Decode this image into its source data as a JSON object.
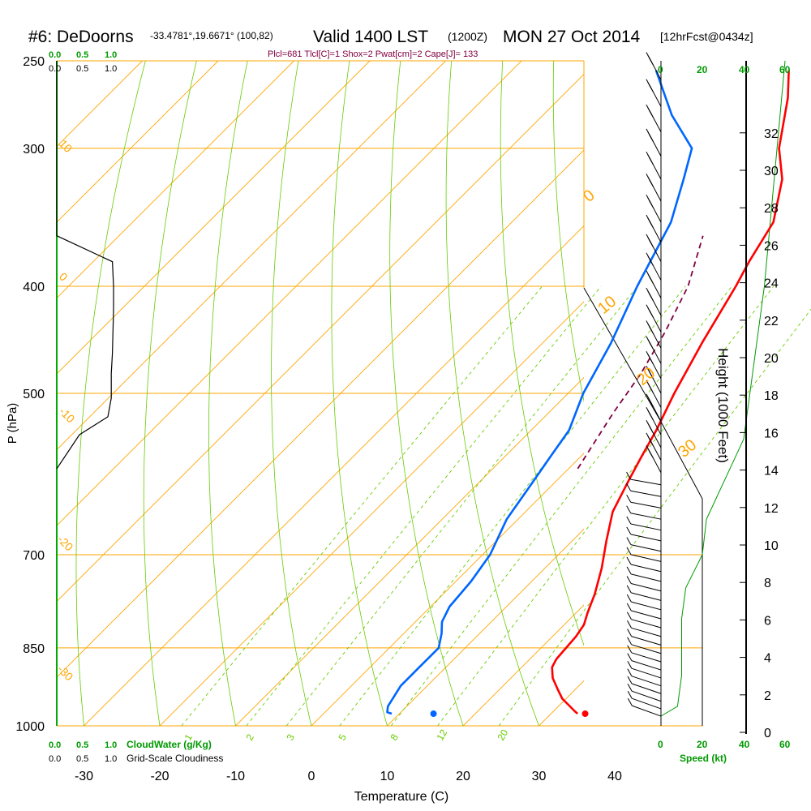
{
  "header": {
    "station": "#6: DeDoorns",
    "coords": "-33.4781°,19.6671° (100,82)",
    "valid": "Valid 1400 LST",
    "zulu": "(1200Z)",
    "date": "MON 27 Oct 2014",
    "forecast": "[12hrFcst@0434z]",
    "indices": "Plcl=681 Tlcl[C]=1 Shox=2 Pwat[cm]=2 Cape[J]= 133"
  },
  "colors": {
    "isobar": "#ffa500",
    "mixing": "#66cc00",
    "temperature": "#ff0000",
    "dewpoint": "#0066ff",
    "parcel": "#800040",
    "cloudwater": "#009900",
    "cloudiness": "#000000",
    "height": "#000000"
  },
  "chart_data": {
    "type": "line",
    "xlabel": "Temperature (C)",
    "ylabel": "P (hPa)",
    "right_label": "Height (1000 Feet)",
    "xlim": [
      -35,
      45
    ],
    "ylim": [
      1000,
      250
    ],
    "x_ticks": [
      "-30",
      "-20",
      "-10",
      "0",
      "10",
      "20",
      "30",
      "40"
    ],
    "y_ticks": [
      "250",
      "300",
      "400",
      "500",
      "700",
      "850",
      "1000"
    ],
    "height_ticks": [
      "0",
      "2",
      "4",
      "6",
      "8",
      "10",
      "12",
      "14",
      "16",
      "18",
      "20",
      "22",
      "24",
      "26",
      "28",
      "30",
      "32"
    ],
    "cloud_axis_top": {
      "water": [
        "0.0",
        "0.5",
        "1.0"
      ],
      "cloudiness": [
        "0.0",
        "0.5",
        "1.0"
      ]
    },
    "cloud_axis_bottom": {
      "water": [
        "0.0",
        "0.5",
        "1.0"
      ],
      "water_label": "CloudWater (g/Kg)",
      "cloudiness": [
        "0.0",
        "0.5",
        "1.0"
      ],
      "cloudiness_label": "Grid-Scale Cloudiness"
    },
    "speed_axis_top": [
      "0",
      "20",
      "40",
      "60"
    ],
    "speed_axis_bottom": [
      "0",
      "20",
      "40",
      "60"
    ],
    "speed_label": "Speed (kt)",
    "isotherm_labels": [
      "10",
      "0",
      "-10",
      "-20",
      "-30"
    ],
    "theta_labels": [
      "0",
      "10",
      "20",
      "30"
    ],
    "mixing_ratio_labels": [
      "1",
      "2",
      "3",
      "5",
      "8",
      "12",
      "20"
    ],
    "series": [
      {
        "key": "temperature",
        "points": [
          [
            33.5,
            975
          ],
          [
            32.8,
            970
          ],
          [
            31.5,
            960
          ],
          [
            29.5,
            945
          ],
          [
            27.5,
            925
          ],
          [
            25.5,
            905
          ],
          [
            24.0,
            885
          ],
          [
            23.5,
            870
          ],
          [
            23.3,
            850
          ],
          [
            23.1,
            830
          ],
          [
            22.6,
            810
          ],
          [
            21.5,
            790
          ],
          [
            20.0,
            760
          ],
          [
            17.5,
            720
          ],
          [
            14.5,
            680
          ],
          [
            11.5,
            640
          ],
          [
            9.5,
            600
          ],
          [
            8.0,
            570
          ],
          [
            6.5,
            540
          ],
          [
            4.0,
            500
          ],
          [
            1.0,
            450
          ],
          [
            -2.0,
            400
          ],
          [
            -3.5,
            380
          ],
          [
            -5.5,
            350
          ],
          [
            -10.0,
            320
          ],
          [
            -14.5,
            300
          ],
          [
            -20.0,
            270
          ],
          [
            -23.5,
            255
          ]
        ]
      },
      {
        "key": "dewpoint",
        "points": [
          [
            9.0,
            975
          ],
          [
            8.2,
            972
          ],
          [
            7.5,
            960
          ],
          [
            6.5,
            920
          ],
          [
            6.5,
            885
          ],
          [
            6.5,
            850
          ],
          [
            5.0,
            825
          ],
          [
            3.5,
            805
          ],
          [
            2.5,
            780
          ],
          [
            2.0,
            740
          ],
          [
            1.0,
            700
          ],
          [
            -1.5,
            650
          ],
          [
            -3.0,
            600
          ],
          [
            -4.0,
            570
          ],
          [
            -5.0,
            540
          ],
          [
            -8.0,
            500
          ],
          [
            -11.0,
            450
          ],
          [
            -15.0,
            400
          ],
          [
            -19.0,
            350
          ],
          [
            -23.0,
            320
          ],
          [
            -26.0,
            300
          ],
          [
            -33.0,
            280
          ],
          [
            -41.0,
            255
          ]
        ]
      },
      {
        "key": "parcel",
        "dash": true,
        "points": [
          [
            1.2,
            585
          ],
          [
            0.2,
            560
          ],
          [
            -1.5,
            520
          ],
          [
            -3.0,
            480
          ],
          [
            -5.3,
            440
          ],
          [
            -8.3,
            400
          ],
          [
            -13.0,
            360
          ]
        ]
      }
    ],
    "surface_temperature": 34.5,
    "surface_dewpoint": 14.5,
    "surface_pressure": 975,
    "cloudiness_profile": [
      [
        0.0,
        250
      ],
      [
        0.0,
        360
      ],
      [
        0.49,
        380
      ],
      [
        0.5,
        400
      ],
      [
        0.5,
        420
      ],
      [
        0.49,
        460
      ],
      [
        0.48,
        480
      ],
      [
        0.48,
        505
      ],
      [
        0.45,
        525
      ],
      [
        0.2,
        545
      ],
      [
        0.0,
        585
      ]
    ],
    "height_profile": [
      [
        60,
        250
      ],
      [
        50,
        400
      ],
      [
        40,
        550
      ],
      [
        22,
        650
      ],
      [
        20,
        700
      ],
      [
        12,
        750
      ],
      [
        10,
        800
      ],
      [
        10,
        850
      ],
      [
        10,
        900
      ],
      [
        8,
        960
      ],
      [
        0,
        980
      ]
    ],
    "wind_pressures": [
      260,
      275,
      290,
      305,
      320,
      335,
      350,
      365,
      380,
      395,
      410,
      425,
      440,
      455,
      470,
      485,
      500,
      515,
      530,
      545,
      560,
      575,
      590,
      605,
      620,
      635,
      650,
      665,
      680,
      695,
      710,
      725,
      740,
      755,
      770,
      785,
      800,
      815,
      830,
      845,
      860,
      875,
      890,
      905,
      920,
      935,
      950,
      965,
      980
    ]
  }
}
